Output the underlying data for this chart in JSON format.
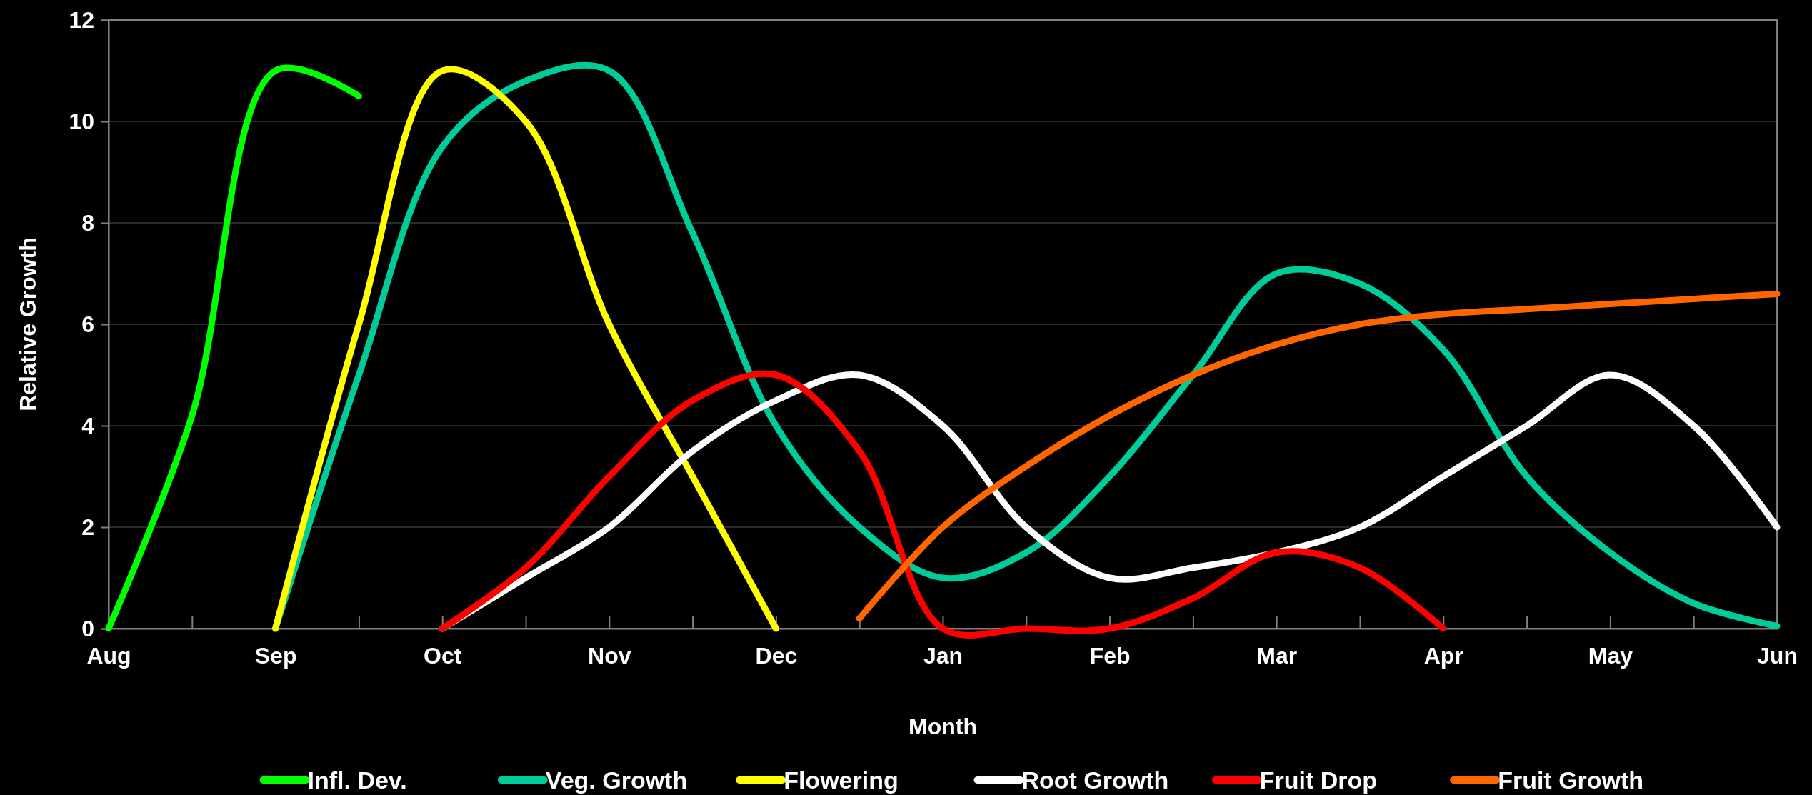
{
  "chart_data": {
    "type": "line",
    "xlabel": "Month",
    "ylabel": "Relative Growth",
    "categories": [
      "Aug",
      null,
      "Sep",
      null,
      "Oct",
      null,
      "Nov",
      null,
      "Dec",
      null,
      "Jan",
      null,
      "Feb",
      null,
      "Mar",
      null,
      "Apr",
      null,
      "May",
      null,
      "Jun"
    ],
    "ylim": [
      0,
      12
    ],
    "yticks": [
      0,
      2,
      4,
      6,
      8,
      10,
      12
    ],
    "grid": "y",
    "legend": "bottom",
    "line_style": "solid",
    "series": [
      {
        "name": "Infl. Dev.",
        "color": "#00ff00",
        "values": [
          0,
          4.2,
          11,
          10.5,
          null,
          null,
          null,
          null,
          null,
          null,
          null,
          null,
          null,
          null,
          null,
          null,
          null,
          null,
          null,
          null,
          null
        ]
      },
      {
        "name": "Veg. Growth",
        "color": "#00cc99",
        "values": [
          null,
          null,
          0,
          5,
          9.5,
          10.8,
          11,
          7.8,
          4,
          2,
          1,
          1.5,
          3,
          5,
          7,
          6.8,
          5.5,
          3,
          1.5,
          0.5,
          0.05
        ]
      },
      {
        "name": "Flowering",
        "color": "#ffff00",
        "values": [
          null,
          null,
          0,
          6,
          11,
          10,
          6,
          3,
          0,
          null,
          null,
          null,
          null,
          null,
          null,
          null,
          null,
          null,
          null,
          null,
          null
        ]
      },
      {
        "name": "Root Growth",
        "color": "#ffffff",
        "values": [
          null,
          null,
          null,
          null,
          0,
          1,
          2,
          3.5,
          4.5,
          5,
          4,
          2,
          1,
          1.2,
          1.5,
          2,
          3,
          4,
          5,
          4,
          2
        ]
      },
      {
        "name": "Fruit Drop",
        "color": "#ff0000",
        "values": [
          null,
          null,
          null,
          null,
          0,
          1.2,
          3,
          4.5,
          5,
          3.5,
          0,
          0,
          0,
          0.6,
          1.5,
          1.2,
          0,
          null,
          null,
          null,
          null
        ]
      },
      {
        "name": "Fruit Growth",
        "color": "#ff6600",
        "values": [
          null,
          null,
          null,
          null,
          null,
          null,
          null,
          null,
          null,
          0.2,
          2,
          3.2,
          4.2,
          5,
          5.6,
          6,
          6.2,
          6.3,
          6.4,
          6.5,
          6.6
        ]
      }
    ]
  }
}
